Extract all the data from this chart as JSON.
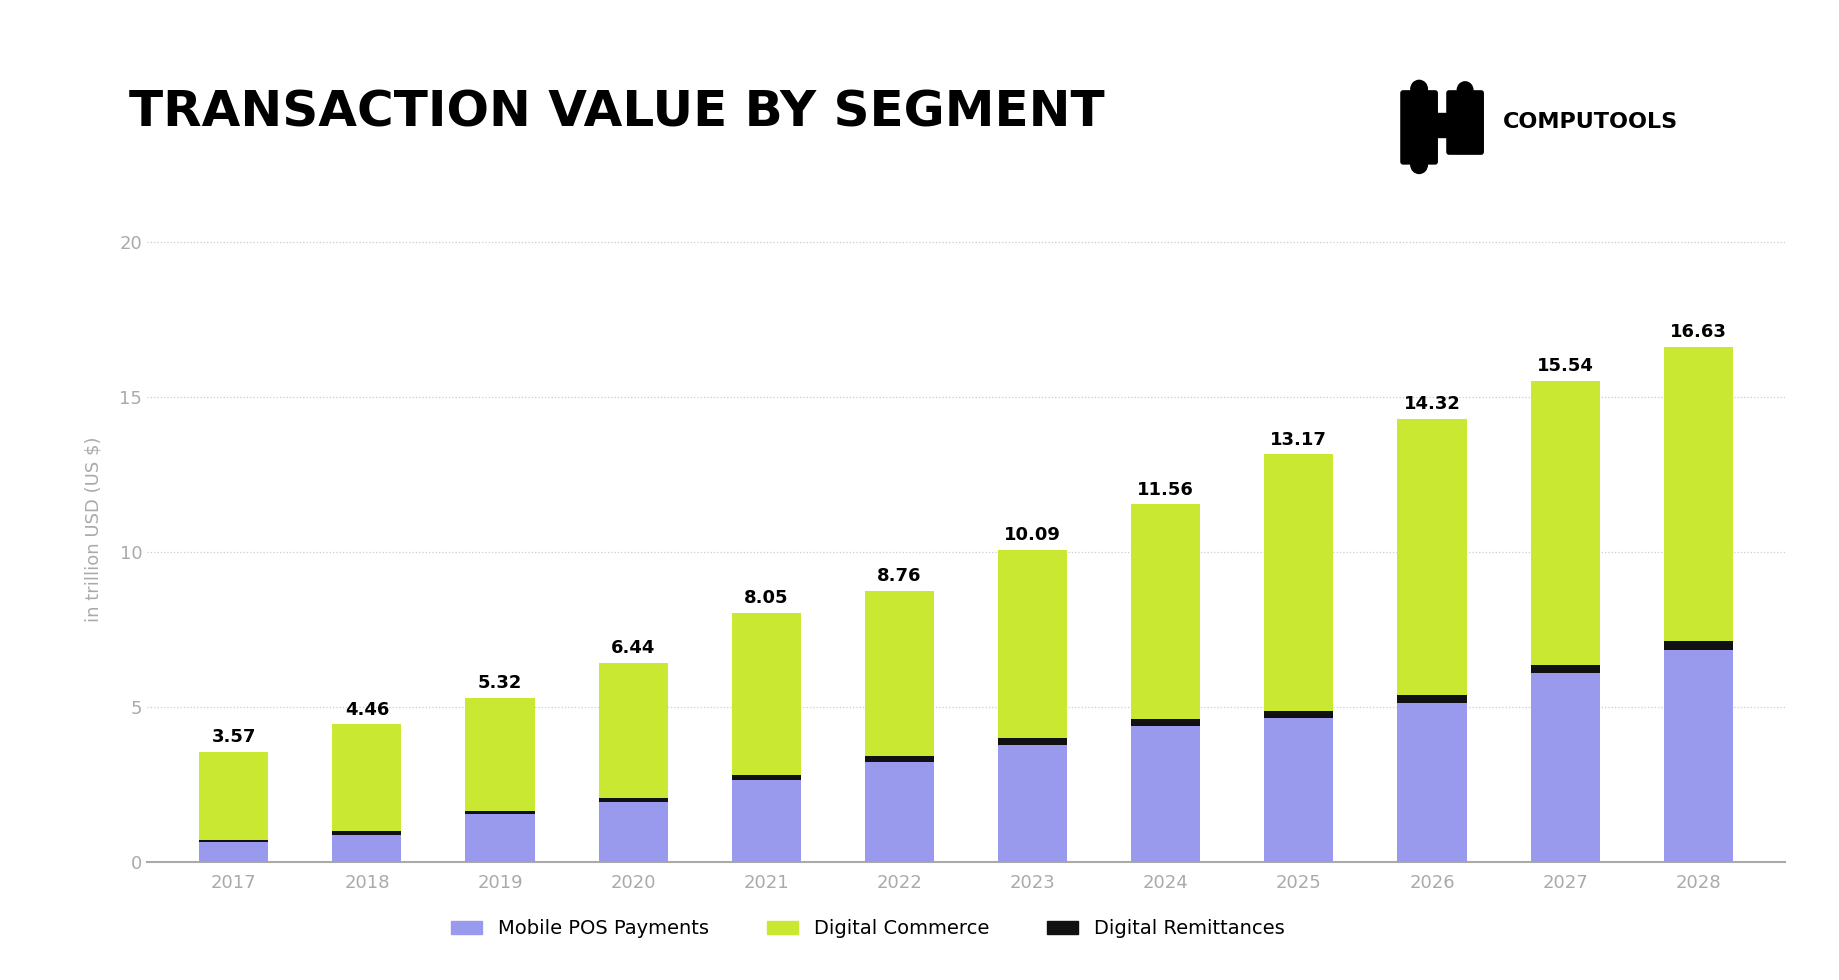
{
  "years": [
    "2017",
    "2018",
    "2019",
    "2020",
    "2021",
    "2022",
    "2023",
    "2024",
    "2025",
    "2026",
    "2027",
    "2028"
  ],
  "totals": [
    3.57,
    4.46,
    5.32,
    6.44,
    8.05,
    8.76,
    10.09,
    11.56,
    13.17,
    14.32,
    15.54,
    16.63
  ],
  "mobile_pos": [
    0.65,
    0.9,
    1.55,
    1.95,
    2.65,
    3.25,
    3.8,
    4.4,
    4.65,
    5.15,
    6.1,
    6.85
  ],
  "digital_remittances": [
    0.08,
    0.1,
    0.12,
    0.14,
    0.16,
    0.18,
    0.2,
    0.22,
    0.24,
    0.26,
    0.28,
    0.3
  ],
  "color_mobile_pos": "#9999ee",
  "color_digital_commerce": "#c8e832",
  "color_digital_remittances": "#111111",
  "title": "TRANSACTION VALUE BY SEGMENT",
  "ylabel": "in trillion USD (US $)",
  "yticks": [
    0,
    5,
    10,
    15,
    20
  ],
  "background_color": "#ffffff",
  "legend_labels": [
    "Mobile POS Payments",
    "Digital Commerce",
    "Digital Remittances"
  ],
  "title_fontsize": 36,
  "axis_label_fontsize": 13,
  "tick_fontsize": 13,
  "annotation_fontsize": 13,
  "bar_width": 0.52
}
